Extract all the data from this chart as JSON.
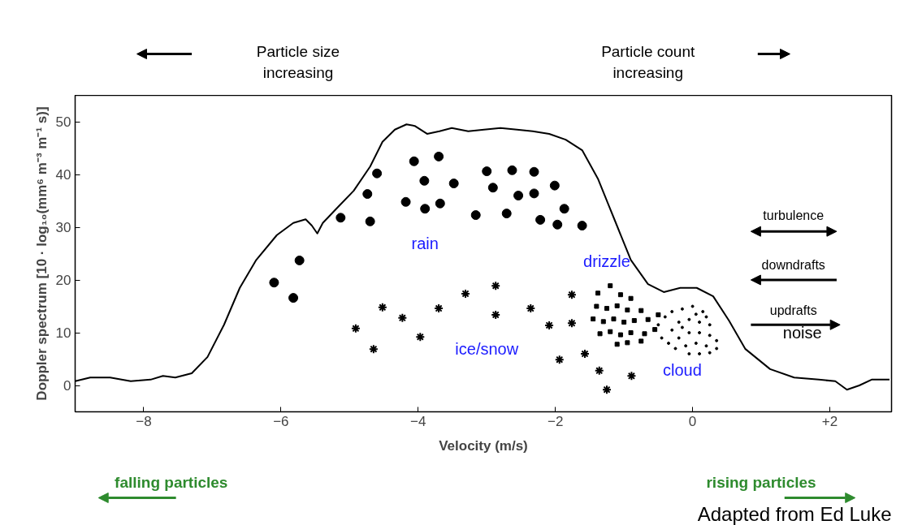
{
  "chart_data": {
    "type": "line",
    "xlabel": "Velocity (m/s)",
    "ylabel": "Doppler spectrum [10 · log₁₀(mm⁶ m⁻³ m⁻¹ s)]",
    "xlim": [
      -9,
      2.9
    ],
    "ylim": [
      -5,
      55
    ],
    "xticks": [
      -8,
      -6,
      -4,
      -2,
      0,
      {
        "value": 2,
        "label": "+2"
      }
    ],
    "yticks": [
      0,
      10,
      20,
      30,
      40,
      50
    ],
    "grid": false,
    "series": [
      {
        "color": "#000000",
        "marker": "none",
        "line_style": "solid",
        "x": [
          -9.0,
          -8.78,
          -8.49,
          -8.19,
          -7.9,
          -7.72,
          -7.54,
          -7.3,
          -7.07,
          -6.83,
          -6.6,
          -6.36,
          -6.06,
          -5.82,
          -5.64,
          -5.55,
          -5.47,
          -5.39,
          -5.17,
          -4.94,
          -4.7,
          -4.52,
          -4.34,
          -4.17,
          -4.05,
          -3.87,
          -3.69,
          -3.51,
          -3.27,
          -3.04,
          -2.8,
          -2.56,
          -2.33,
          -2.09,
          -1.85,
          -1.61,
          -1.38,
          -1.14,
          -0.9,
          -0.65,
          -0.42,
          -0.18,
          0.06,
          0.3,
          0.53,
          0.77,
          1.13,
          1.48,
          1.84,
          2.08,
          2.25,
          2.43,
          2.61,
          2.87
        ],
        "values": [
          0.8,
          1.5,
          1.5,
          0.8,
          1.1,
          1.8,
          1.5,
          2.3,
          5.4,
          11.5,
          18.5,
          23.8,
          28.5,
          30.8,
          31.5,
          30.3,
          28.8,
          30.8,
          33.8,
          36.9,
          41.5,
          46.2,
          48.5,
          49.5,
          49.2,
          47.7,
          48.2,
          48.8,
          48.2,
          48.5,
          48.8,
          48.5,
          48.2,
          47.7,
          46.6,
          44.6,
          39.2,
          31.5,
          23.8,
          19.2,
          17.7,
          18.5,
          18.5,
          16.9,
          12.3,
          6.9,
          3.1,
          1.5,
          1.1,
          0.8,
          -0.8,
          0,
          1.1,
          1.1
        ]
      },
      {
        "type": "scatter",
        "color": "#000000",
        "marker": "circle",
        "x": [
          -6.1,
          -5.82,
          -5.73,
          -5.13,
          -4.7,
          -4.74,
          -4.6,
          -4.18,
          -4.06,
          -3.91,
          -3.9,
          -3.7,
          -3.68,
          -3.48,
          -3.16,
          -3.0,
          -2.91,
          -2.63,
          -2.71,
          -2.54,
          -2.31,
          -2.31,
          -2.22,
          -2.01,
          -1.97,
          -1.87,
          -1.61
        ],
        "values": [
          19.5,
          16.6,
          23.7,
          31.8,
          31.1,
          36.3,
          40.2,
          34.8,
          42.5,
          38.8,
          33.5,
          43.4,
          34.5,
          38.3,
          32.3,
          40.6,
          37.5,
          40.8,
          32.6,
          36.0,
          40.5,
          36.4,
          31.4,
          37.9,
          30.5,
          33.5,
          30.3
        ]
      },
      {
        "type": "scatter",
        "color": "#000000",
        "marker": "cross",
        "x": [
          -4.91,
          -4.65,
          -4.52,
          -4.23,
          -3.97,
          -3.7,
          -3.31,
          -2.87,
          -2.87,
          -2.36,
          -2.09,
          -1.94,
          -1.76,
          -1.76,
          -1.57,
          -1.36,
          -1.25,
          -0.89
        ],
        "values": [
          10.8,
          6.9,
          14.8,
          12.8,
          9.2,
          14.6,
          17.4,
          18.9,
          13.4,
          14.6,
          11.4,
          4.9,
          17.2,
          11.8,
          6.0,
          2.8,
          -0.8,
          1.8
        ]
      },
      {
        "type": "scatter",
        "color": "#000000",
        "marker": "square",
        "x": [
          -1.38,
          -1.2,
          -1.05,
          -0.9,
          -1.4,
          -1.25,
          -1.1,
          -0.95,
          -0.75,
          -1.45,
          -1.3,
          -1.15,
          -1.0,
          -0.85,
          -0.65,
          -0.5,
          -1.35,
          -1.2,
          -1.05,
          -0.9,
          -0.7,
          -0.55,
          -1.1,
          -0.95,
          -0.75
        ],
        "values": [
          17.5,
          18.9,
          17.2,
          16.5,
          15,
          14.6,
          15.1,
          14.3,
          14.2,
          12.6,
          12.1,
          12.6,
          12,
          12.3,
          12.5,
          13.4,
          9.8,
          10.2,
          9.6,
          10.0,
          9.8,
          10.6,
          7.8,
          8.1,
          8.4
        ]
      },
      {
        "type": "scatter",
        "color": "#000000",
        "marker": "circle",
        "x": [
          -0.5,
          -0.4,
          -0.3,
          -0.15,
          0,
          0.15,
          -0.45,
          -0.3,
          -0.2,
          -0.05,
          0.1,
          0.25,
          -0.35,
          -0.2,
          -0.05,
          0.1,
          0.25,
          0.35,
          -0.25,
          -0.1,
          0.05,
          0.2,
          0.35,
          -0.05,
          0.1,
          0.25,
          0.05,
          -0.15,
          0.2
        ],
        "values": [
          11.5,
          13,
          14,
          14.5,
          15,
          14,
          9,
          10.5,
          12,
          12.5,
          12,
          11.5,
          8,
          9,
          10,
          10,
          9.5,
          8.5,
          7,
          7.5,
          8,
          7.5,
          7,
          6,
          6,
          6.2,
          13.5,
          11,
          13
        ]
      }
    ],
    "annotations": [
      "rain",
      "drizzle",
      "ice/snow",
      "cloud",
      "noise",
      "turbulence",
      "downdrafts",
      "updrafts",
      "Particle size\nincreasing",
      "Particle count\nincreasing",
      "falling particles",
      "rising particles",
      "Adapted from Ed Luke"
    ]
  }
}
